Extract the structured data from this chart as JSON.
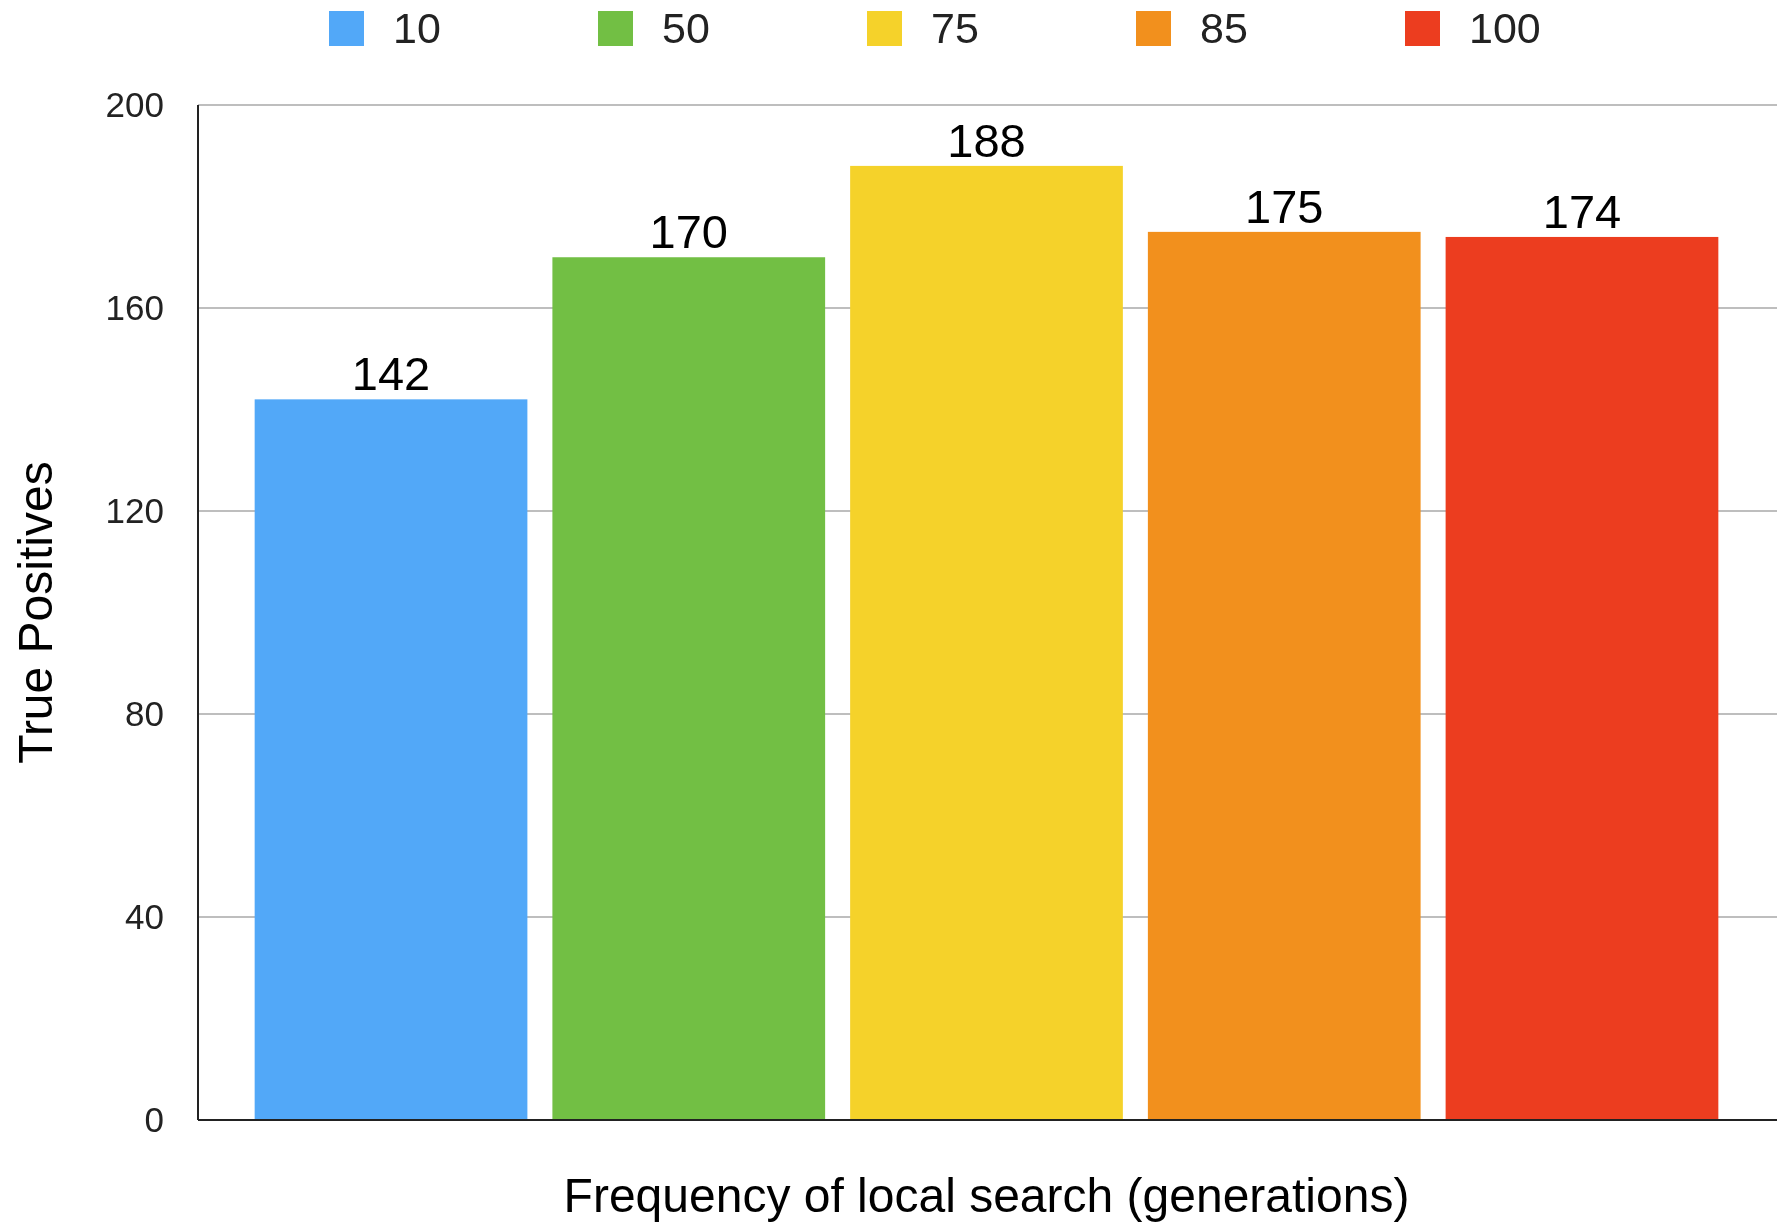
{
  "chart_data": {
    "type": "bar",
    "xlabel": "Frequency of local search (generations)",
    "ylabel": "True Positives",
    "categories": [
      null
    ],
    "series": [
      {
        "name": "10",
        "color": "#52a8f8",
        "values": [
          142
        ]
      },
      {
        "name": "50",
        "color": "#72bf44",
        "values": [
          170
        ]
      },
      {
        "name": "75",
        "color": "#f5d22a",
        "values": [
          188
        ]
      },
      {
        "name": "85",
        "color": "#f2901d",
        "values": [
          175
        ]
      },
      {
        "name": "100",
        "color": "#ec3d1f",
        "values": [
          174
        ]
      }
    ],
    "ylim": [
      0,
      200
    ],
    "yticks": [
      0,
      40,
      80,
      120,
      160,
      200
    ],
    "grid": "y",
    "legend": "top",
    "data_labels": true
  }
}
